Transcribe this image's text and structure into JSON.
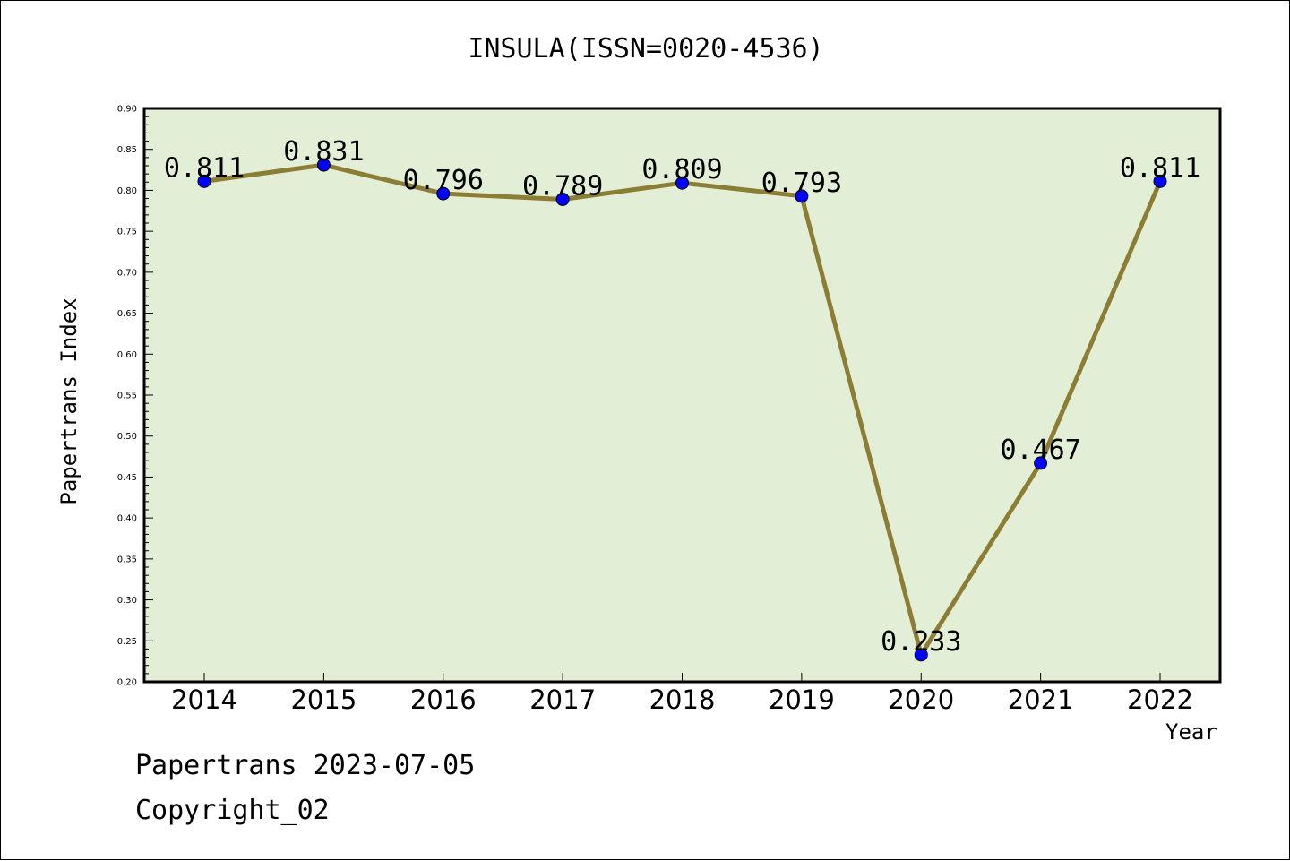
{
  "chart_data": {
    "type": "line",
    "title": "INSULA(ISSN=0020-4536)",
    "xlabel": "Year",
    "ylabel": "Papertrans Index",
    "categories": [
      "2014",
      "2015",
      "2016",
      "2017",
      "2018",
      "2019",
      "2020",
      "2021",
      "2022"
    ],
    "series": [
      {
        "values": [
          0.811,
          0.831,
          0.796,
          0.789,
          0.809,
          0.793,
          0.233,
          0.467,
          0.811
        ],
        "labels": [
          "0.811",
          "0.831",
          "0.796",
          "0.789",
          "0.809",
          "0.793",
          "0.233",
          "0.467",
          "0.811"
        ]
      }
    ],
    "ylim": [
      0.2,
      0.9
    ],
    "yticks": [
      "0.20",
      "0.25",
      "0.30",
      "0.35",
      "0.40",
      "0.45",
      "0.50",
      "0.55",
      "0.60",
      "0.65",
      "0.70",
      "0.75",
      "0.80",
      "0.85",
      "0.90"
    ],
    "grid": false,
    "colors": {
      "plot_background": "#e2efd6",
      "line": "#8b7d34",
      "marker": "#0000ff"
    }
  },
  "footer": {
    "line1": "Papertrans 2023-07-05",
    "line2": "Copyright_02"
  }
}
